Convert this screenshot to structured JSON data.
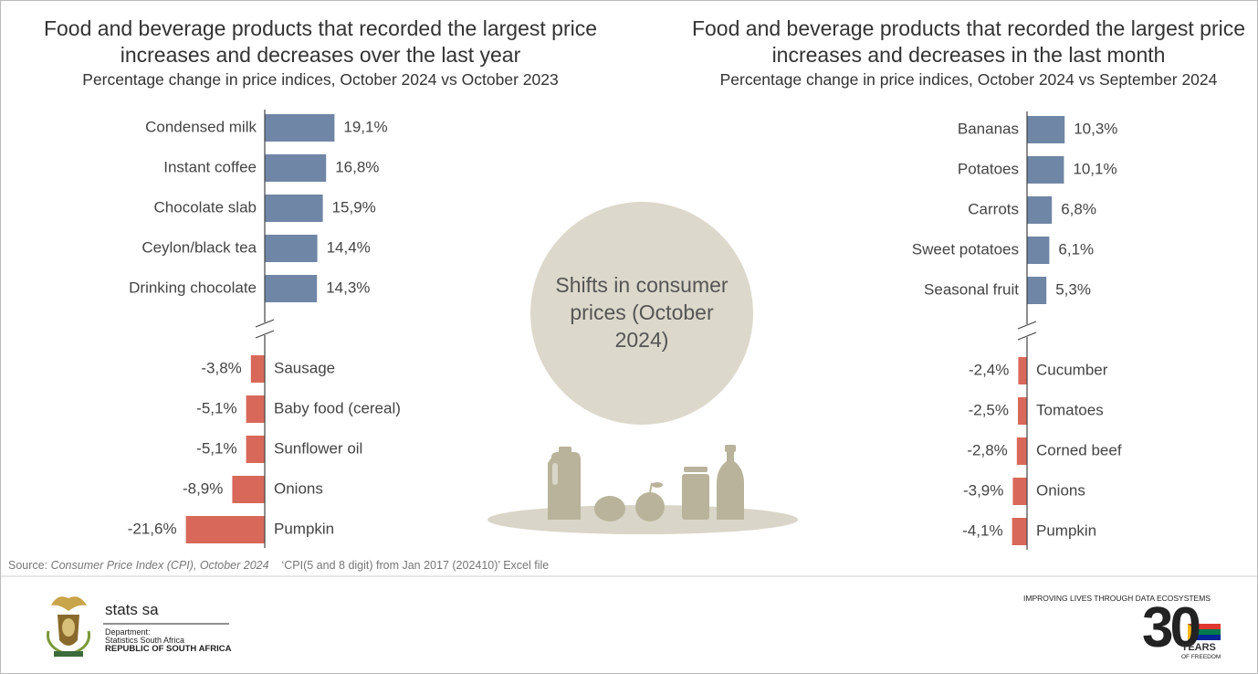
{
  "chart_data": [
    {
      "type": "bar",
      "orientation": "horizontal",
      "title": "Food and beverage products that recorded the largest price increases and decreases over the last year",
      "subtitle": "Percentage change in price indices, October 2024 vs October 2023",
      "categories": [
        "Condensed milk",
        "Instant coffee",
        "Chocolate slab",
        "Ceylon/black tea",
        "Drinking chocolate",
        "Sausage",
        "Baby food (cereal)",
        "Sunflower oil",
        "Onions",
        "Pumpkin"
      ],
      "values": [
        19.1,
        16.8,
        15.9,
        14.4,
        14.3,
        -3.8,
        -5.1,
        -5.1,
        -8.9,
        -21.6
      ],
      "value_labels": [
        "19,1%",
        "16,8%",
        "15,9%",
        "14,4%",
        "14,3%",
        "-3,8%",
        "-5,1%",
        "-5,1%",
        "-8,9%",
        "-21,6%"
      ],
      "color": "#6f86a6",
      "negative_color": "#d8695a"
    },
    {
      "type": "bar",
      "orientation": "horizontal",
      "title": "Food and beverage products that recorded the largest price increases and decreases in the last month",
      "subtitle": "Percentage change in price indices, October 2024 vs September 2024",
      "categories": [
        "Bananas",
        "Potatoes",
        "Carrots",
        "Sweet potatoes",
        "Seasonal fruit",
        "Cucumber",
        "Tomatoes",
        "Corned beef",
        "Onions",
        "Pumpkin"
      ],
      "values": [
        10.3,
        10.1,
        6.8,
        6.1,
        5.3,
        -2.4,
        -2.5,
        -2.8,
        -3.9,
        -4.1
      ],
      "value_labels": [
        "10,3%",
        "10,1%",
        "6,8%",
        "6,1%",
        "5,3%",
        "-2,4%",
        "-2,5%",
        "-2,8%",
        "-3,9%",
        "-4,1%"
      ],
      "color": "#6f86a6",
      "negative_color": "#d8695a"
    }
  ],
  "center_label": "Shifts in consumer prices (October 2024)",
  "source": {
    "label": "Source:",
    "publication": "Consumer Price Index (CPI), October 2024",
    "file": "‘CPI(5 and 8 digit) from Jan 2017 (202410)’ Excel file"
  },
  "footer": {
    "brand": "stats sa",
    "department": "Department:",
    "organisation": "Statistics South Africa",
    "country": "REPUBLIC OF SOUTH AFRICA",
    "tagline": "IMPROVING LIVES THROUGH DATA ECOSYSTEMS",
    "anniversary": "30",
    "years": "YEARS",
    "freedom": "OF FREEDOM"
  }
}
